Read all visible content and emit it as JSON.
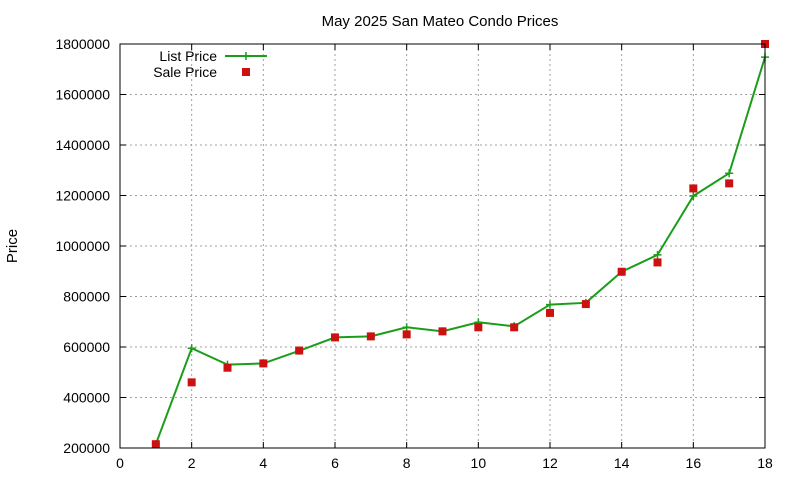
{
  "chart_data": {
    "type": "line",
    "title": "May 2025 San Mateo Condo Prices",
    "xlabel": "",
    "ylabel": "Price",
    "xlim": [
      0,
      18
    ],
    "ylim": [
      200000,
      1800000
    ],
    "x_ticks": [
      0,
      2,
      4,
      6,
      8,
      10,
      12,
      14,
      16,
      18
    ],
    "y_ticks": [
      200000,
      400000,
      600000,
      800000,
      1000000,
      1200000,
      1400000,
      1600000,
      1800000
    ],
    "grid": true,
    "legend_position": "top-left",
    "series": [
      {
        "name": "List Price",
        "style": "line-with-plus-markers",
        "color": "#1a9e1a",
        "x": [
          1,
          2,
          3,
          4,
          5,
          6,
          7,
          8,
          9,
          10,
          11,
          12,
          13,
          14,
          15,
          16,
          17,
          18
        ],
        "values": [
          215000,
          595000,
          530000,
          535000,
          585000,
          638000,
          642000,
          678000,
          662000,
          698000,
          682000,
          768000,
          775000,
          898000,
          965000,
          1198000,
          1288000,
          1748000
        ]
      },
      {
        "name": "Sale Price",
        "style": "square-markers",
        "color": "#cc1111",
        "x": [
          1,
          2,
          3,
          4,
          5,
          6,
          7,
          8,
          9,
          10,
          11,
          12,
          13,
          14,
          15,
          16,
          17,
          18
        ],
        "values": [
          215000,
          460000,
          518000,
          535000,
          586000,
          638000,
          642000,
          650000,
          662000,
          678000,
          678000,
          735000,
          770000,
          898000,
          935000,
          1228000,
          1248000,
          1800000
        ]
      }
    ]
  }
}
